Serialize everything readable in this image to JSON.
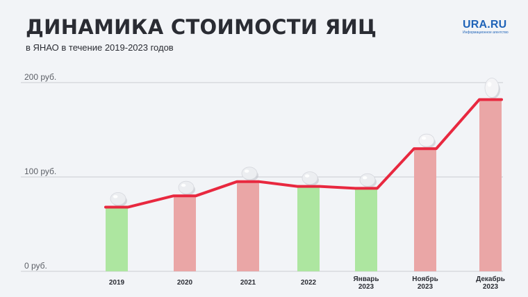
{
  "header": {
    "title": "ДИНАМИКА СТОИМОСТИ ЯИЦ",
    "subtitle": "в ЯНАО в течение 2019-2023 годов"
  },
  "logo": {
    "main": "URA.RU",
    "sub": "Информационное агентство"
  },
  "colors": {
    "line": "#e8283f",
    "bar_decrease": "#ade6a0",
    "bar_increase": "#eaa6a6",
    "grid": "#c9ccd2"
  },
  "chart_data": {
    "type": "bar",
    "categories": [
      [
        "2019"
      ],
      [
        "2020"
      ],
      [
        "2021"
      ],
      [
        "2022"
      ],
      [
        "Январь",
        "2023"
      ],
      [
        "Ноябрь",
        "2023"
      ],
      [
        "Декабрь",
        "2023"
      ]
    ],
    "values": [
      68,
      80,
      95,
      90,
      88,
      130,
      182
    ],
    "bar_trend": [
      "down",
      "up",
      "up",
      "down",
      "down",
      "up",
      "up"
    ],
    "overlay_line": true,
    "yticks": [
      "200 руб.",
      "100 руб.",
      "0 руб."
    ],
    "ytick_values": [
      200,
      100,
      0
    ],
    "ylim": [
      0,
      200
    ],
    "grid": true,
    "legend": "none",
    "icon": "egg-icon"
  }
}
